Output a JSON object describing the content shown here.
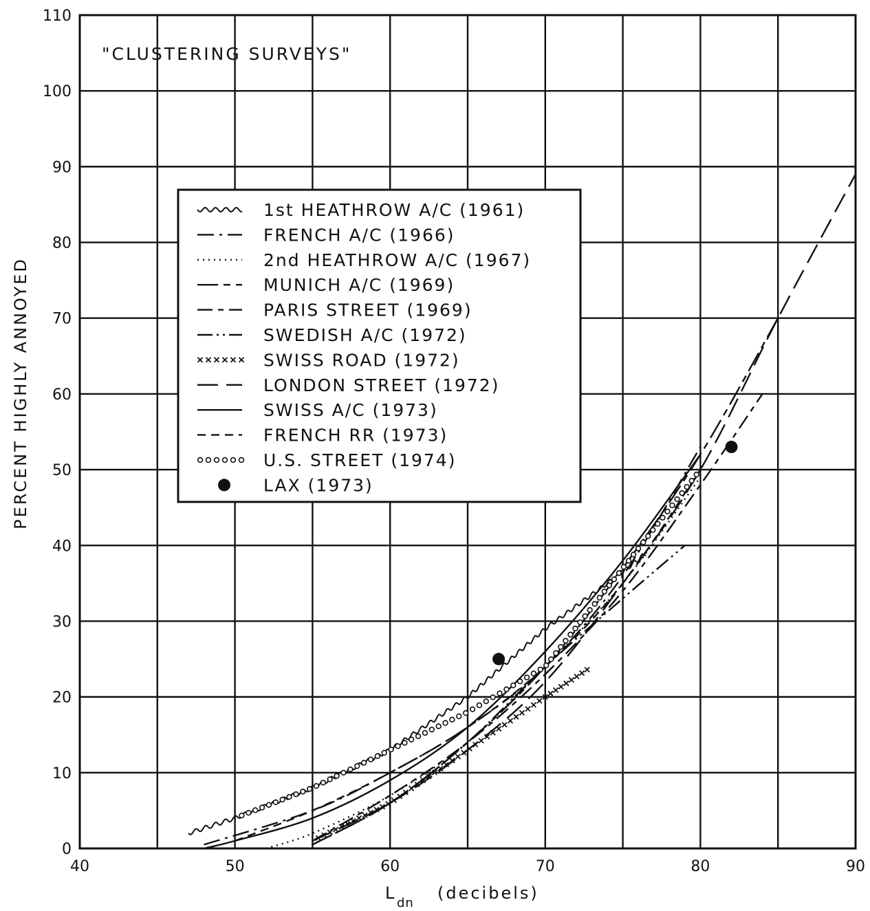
{
  "chart_data": {
    "type": "line",
    "title": "\"CLUSTERING SURVEYS\"",
    "xlabel_main": "L",
    "xlabel_sub": "dn",
    "xlabel_rest": "(decibels)",
    "ylabel": "PERCENT HIGHLY ANNOYED",
    "xlim": [
      40,
      90
    ],
    "ylim": [
      0,
      110
    ],
    "xticks": [
      40,
      50,
      60,
      70,
      80,
      90
    ],
    "yticks": [
      0,
      10,
      20,
      30,
      40,
      50,
      60,
      70,
      80,
      90,
      100,
      110
    ],
    "grid": true,
    "legend_position": "upper-left",
    "series": [
      {
        "name": "1st HEATHROW A/C (1961)",
        "style": "wavy",
        "x": [
          47,
          50,
          55,
          60,
          65,
          70,
          75,
          76.5
        ],
        "y": [
          2,
          4,
          8,
          13,
          20,
          29,
          36.5,
          39
        ]
      },
      {
        "name": "FRENCH A/C (1966)",
        "style": "dash-dot",
        "x": [
          48,
          55,
          60,
          65,
          70,
          75,
          80
        ],
        "y": [
          0.5,
          5,
          10,
          16,
          24,
          36,
          53
        ]
      },
      {
        "name": "2nd HEATHROW A/C (1967)",
        "style": "dotted",
        "x": [
          52,
          55,
          60,
          65,
          70,
          75,
          80
        ],
        "y": [
          0,
          2,
          7,
          14,
          24,
          35,
          49
        ]
      },
      {
        "name": "MUNICH A/C (1969)",
        "style": "long-dash-short",
        "x": [
          55,
          60,
          65,
          70,
          75,
          80,
          85
        ],
        "y": [
          0.5,
          6,
          14,
          24,
          37,
          52,
          70
        ]
      },
      {
        "name": "PARIS STREET (1969)",
        "style": "dash-short",
        "x": [
          55,
          60,
          65,
          70,
          75,
          80,
          84
        ],
        "y": [
          1,
          7,
          14,
          23,
          34,
          48,
          60
        ]
      },
      {
        "name": "SWEDISH A/C (1972)",
        "style": "dash-dot-dot",
        "x": [
          55,
          60,
          65,
          70,
          75,
          79
        ],
        "y": [
          0.5,
          6,
          14,
          24,
          33,
          40
        ]
      },
      {
        "name": "SWISS ROAD (1972)",
        "style": "crosses",
        "x": [
          55,
          60,
          65,
          70,
          73
        ],
        "y": [
          1,
          6,
          13,
          20,
          24
        ]
      },
      {
        "name": "LONDON STREET (1972)",
        "style": "long-dash",
        "x": [
          55,
          60,
          65,
          70,
          75,
          80,
          85,
          90
        ],
        "y": [
          1,
          6,
          13,
          22,
          35,
          50,
          70,
          89
        ]
      },
      {
        "name": "SWISS A/C (1973)",
        "style": "solid",
        "x": [
          48,
          50,
          55,
          60,
          65,
          70,
          75,
          80
        ],
        "y": [
          0,
          1,
          4,
          9,
          16,
          26,
          38,
          52
        ]
      },
      {
        "name": "FRENCH RR (1973)",
        "style": "short-dash",
        "x": [
          50,
          55,
          60,
          65,
          70,
          75,
          80
        ],
        "y": [
          1,
          5,
          10,
          16,
          24,
          35,
          50
        ]
      },
      {
        "name": "U.S. STREET (1974)",
        "style": "circles",
        "x": [
          50,
          55,
          60,
          65,
          70,
          75,
          80
        ],
        "y": [
          4,
          8,
          13,
          18,
          24,
          37,
          50
        ]
      },
      {
        "name": "LAX (1973)",
        "style": "points",
        "x": [
          67,
          82
        ],
        "y": [
          25,
          53
        ]
      }
    ]
  }
}
